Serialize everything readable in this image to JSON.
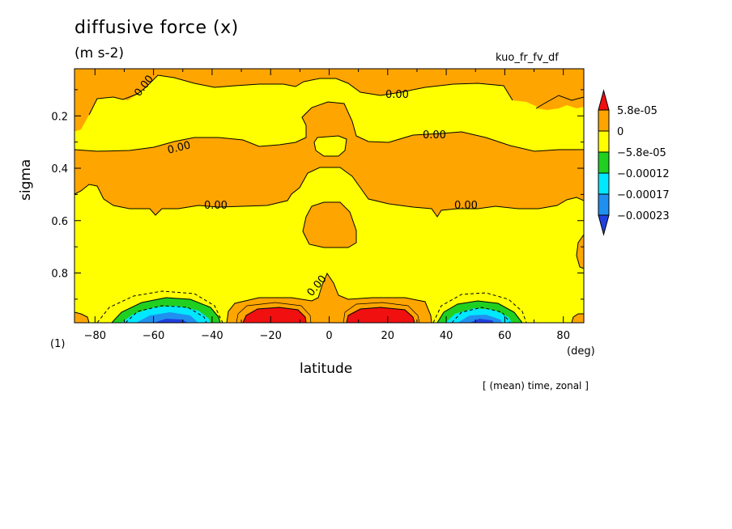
{
  "title": "diffusive force (x)",
  "units": "(m s-2)",
  "variable": "kuo_fr_fv_df",
  "panel_label": "(1)",
  "x_unit": "(deg)",
  "note": "[ (mean) time, zonal ]",
  "colors": {
    "red": "#f01010",
    "orange": "#ffa500",
    "yellow": "#ffff00",
    "green": "#20d020",
    "cyan": "#00e8ff",
    "blue": "#2090f0",
    "darkblue": "#2040e0"
  },
  "chart_data": {
    "type": "heatmap",
    "subtype": "filled contour",
    "xlabel": "latitude",
    "ylabel": "sigma",
    "xlim": [
      -87,
      87
    ],
    "ylim": [
      0.02,
      0.99
    ],
    "y_inverted": true,
    "xticks": [
      -80,
      -60,
      -40,
      -20,
      0,
      20,
      40,
      60,
      80
    ],
    "yticks": [
      0.2,
      0.4,
      0.6,
      0.8
    ],
    "contour_labels": [
      "0.00",
      "0.00",
      "0.00",
      "0.00",
      "0.00",
      "0.00",
      "0.00"
    ],
    "colorbar": {
      "levels": [
        "5.8e-05",
        "0",
        "-5.8e-05",
        "-0.00012",
        "-0.00017",
        "-0.00023"
      ],
      "colors": [
        "#f01010",
        "#ffa500",
        "#ffff00",
        "#20d020",
        "#00e8ff",
        "#2090f0",
        "#2040e0"
      ]
    }
  }
}
